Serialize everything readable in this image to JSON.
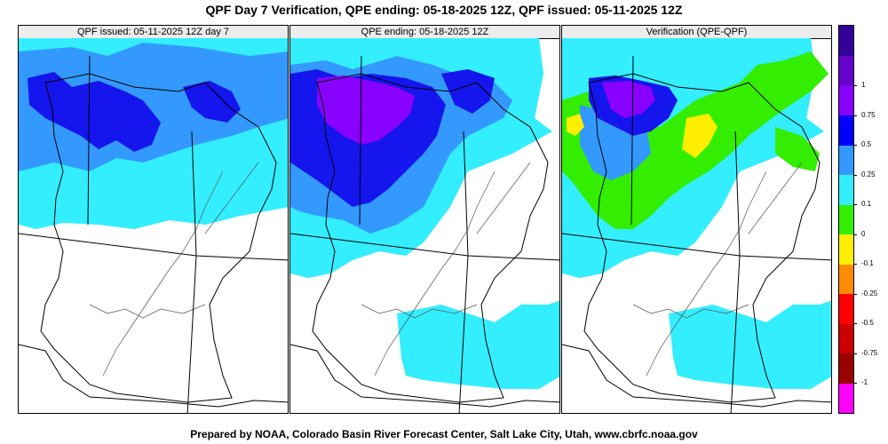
{
  "title": "QPF Day 7 Verification, QPE ending: 05-18-2025 12Z, QPF issued: 05-11-2025 12Z",
  "footer": "Prepared by NOAA, Colorado Basin River Forecast Center, Salt Lake City, Utah, www.cbrfc.noaa.gov",
  "panels": [
    {
      "label": "QPF issued: 05-11-2025 12Z day 7"
    },
    {
      "label": "QPE ending: 05-18-2025 12Z"
    },
    {
      "label": "Verification (QPE-QPF)"
    }
  ],
  "legend": {
    "bins": [
      {
        "color": "#ff00ff"
      },
      {
        "color": "#990000"
      },
      {
        "color": "#cc0000"
      },
      {
        "color": "#ff0000"
      },
      {
        "color": "#ff8c00"
      },
      {
        "color": "#ffee00"
      },
      {
        "color": "#33ee00"
      },
      {
        "color": "#33eeff"
      },
      {
        "color": "#3399ff"
      },
      {
        "color": "#0000ff"
      },
      {
        "color": "#8800ff"
      },
      {
        "color": "#6600cc"
      },
      {
        "color": "#330099"
      }
    ],
    "ticks": [
      "1",
      "0.75",
      "0.5",
      "0.25",
      "0.1",
      "0",
      "-0.1",
      "-0.25",
      "-0.5",
      "-0.75",
      "-1"
    ]
  },
  "colors": {
    "light": "#33eeff",
    "medium": "#3399ff",
    "heavy": "#1515ee",
    "extreme": "#8800ff",
    "positive_small": "#33ee00",
    "positive_mid": "#ffee00",
    "boundary": "#000000",
    "river": "#555555"
  }
}
